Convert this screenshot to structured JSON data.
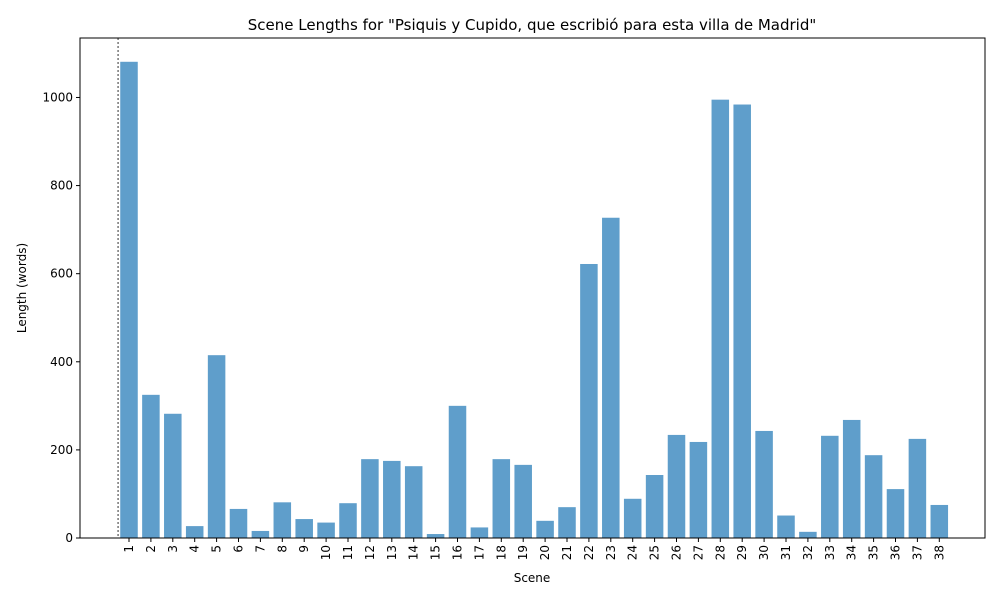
{
  "chart_data": {
    "type": "bar",
    "title": "Scene Lengths for \"Psiquis y Cupido, que escribió para esta villa de Madrid\"",
    "xlabel": "Scene",
    "ylabel": "Length (words)",
    "categories": [
      "1",
      "2",
      "3",
      "4",
      "5",
      "6",
      "7",
      "8",
      "9",
      "10",
      "11",
      "12",
      "13",
      "14",
      "15",
      "16",
      "17",
      "18",
      "19",
      "20",
      "21",
      "22",
      "23",
      "24",
      "25",
      "26",
      "27",
      "28",
      "29",
      "30",
      "31",
      "32",
      "33",
      "34",
      "35",
      "36",
      "37",
      "38"
    ],
    "values": [
      1081,
      325,
      282,
      27,
      415,
      66,
      16,
      81,
      43,
      35,
      79,
      179,
      175,
      163,
      9,
      300,
      24,
      179,
      166,
      39,
      70,
      622,
      727,
      89,
      143,
      234,
      218,
      995,
      984,
      243,
      51,
      14,
      232,
      268,
      188,
      111,
      225,
      75
    ],
    "ylim": [
      0,
      1135
    ],
    "yticks": [
      0,
      200,
      400,
      600,
      800,
      1000
    ],
    "bar_color": "#5f9ecb",
    "marker_line_at_category": "1",
    "grid": false,
    "legend": "none"
  }
}
